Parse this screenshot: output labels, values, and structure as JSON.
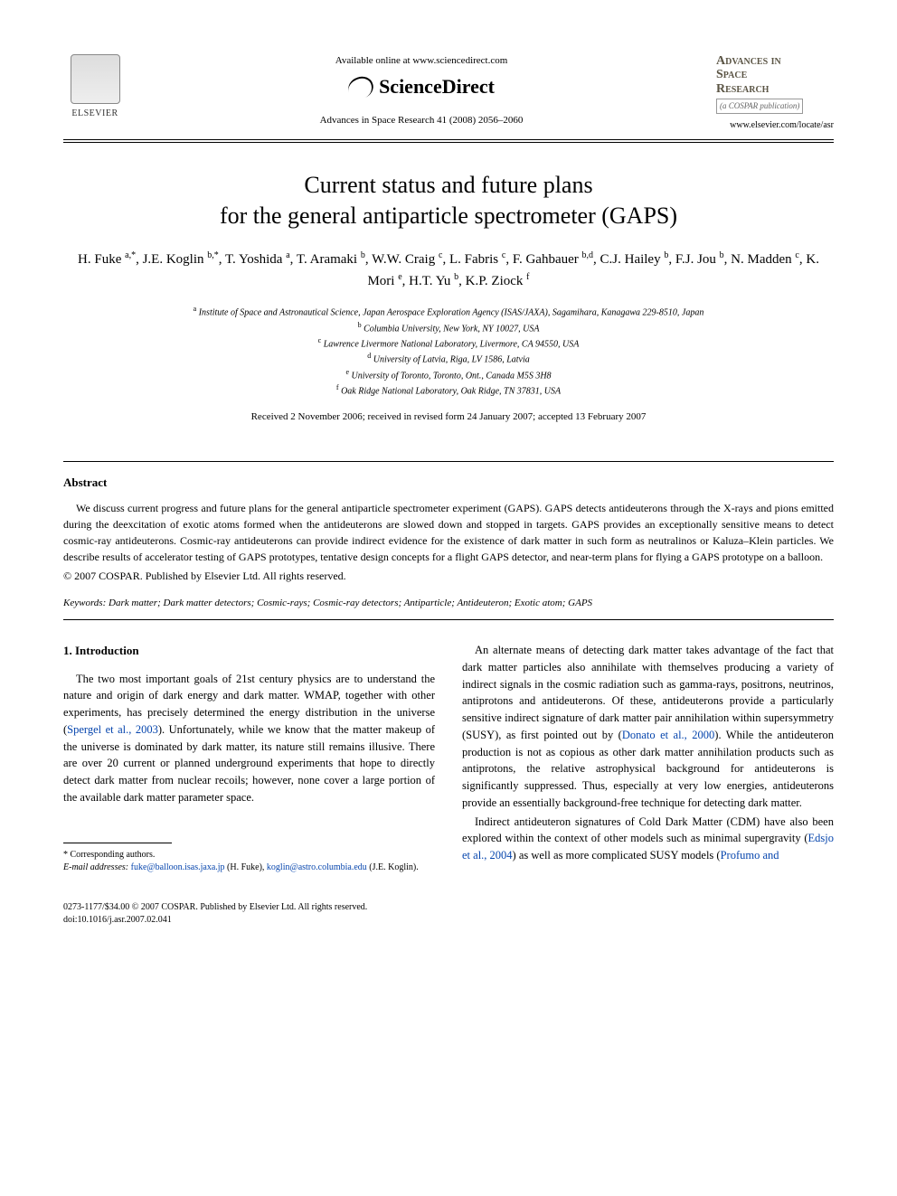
{
  "header": {
    "available_online": "Available online at www.sciencedirect.com",
    "sciencedirect": "ScienceDirect",
    "journal_ref": "Advances in Space Research 41 (2008) 2056–2060",
    "elsevier_label": "ELSEVIER",
    "journal_name_line1": "Advances in",
    "journal_name_line2": "Space",
    "journal_name_line3": "Research",
    "cospar": "(a COSPAR publication)",
    "journal_url": "www.elsevier.com/locate/asr"
  },
  "title_line1": "Current status and future plans",
  "title_line2": "for the general antiparticle spectrometer (GAPS)",
  "authors_html": "H. Fuke&nbsp;<sup>a,*</sup>, J.E. Koglin&nbsp;<sup>b,*</sup>, T. Yoshida&nbsp;<sup>a</sup>, T. Aramaki&nbsp;<sup>b</sup>, W.W. Craig&nbsp;<sup>c</sup>, L. Fabris&nbsp;<sup>c</sup>, F.&nbsp;Gahbauer&nbsp;<sup>b,d</sup>, C.J. Hailey&nbsp;<sup>b</sup>, F.J. Jou&nbsp;<sup>b</sup>, N. Madden&nbsp;<sup>c</sup>, K. Mori&nbsp;<sup>e</sup>, H.T. Yu&nbsp;<sup>b</sup>, K.P. Ziock&nbsp;<sup>f</sup>",
  "affiliations": {
    "a": "Institute of Space and Astronautical Science, Japan Aerospace Exploration Agency (ISAS/JAXA), Sagamihara, Kanagawa 229-8510, Japan",
    "b": "Columbia University, New York, NY 10027, USA",
    "c": "Lawrence Livermore National Laboratory, Livermore, CA 94550, USA",
    "d": "University of Latvia, Riga, LV 1586, Latvia",
    "e": "University of Toronto, Toronto, Ont., Canada M5S 3H8",
    "f": "Oak Ridge National Laboratory, Oak Ridge, TN 37831, USA"
  },
  "dates": "Received 2 November 2006; received in revised form 24 January 2007; accepted 13 February 2007",
  "abstract": {
    "heading": "Abstract",
    "text": "We discuss current progress and future plans for the general antiparticle spectrometer experiment (GAPS). GAPS detects antideuterons through the X-rays and pions emitted during the deexcitation of exotic atoms formed when the antideuterons are slowed down and stopped in targets. GAPS provides an exceptionally sensitive means to detect cosmic-ray antideuterons. Cosmic-ray antideuterons can provide indirect evidence for the existence of dark matter in such form as neutralinos or Kaluza–Klein particles. We describe results of accelerator testing of GAPS prototypes, tentative design concepts for a flight GAPS detector, and near-term plans for flying a GAPS prototype on a balloon.",
    "copyright": "© 2007 COSPAR. Published by Elsevier Ltd. All rights reserved."
  },
  "keywords": {
    "label": "Keywords:",
    "list": "Dark matter; Dark matter detectors; Cosmic-rays; Cosmic-ray detectors; Antiparticle; Antideuteron; Exotic atom; GAPS"
  },
  "section1": {
    "heading": "1. Introduction",
    "col_left_p1": "The two most important goals of 21st century physics are to understand the nature and origin of dark energy and dark matter. WMAP, together with other experiments, has precisely determined the energy distribution in the universe (",
    "cite1": "Spergel et al., 2003",
    "col_left_p1b": "). Unfortunately, while we know that the matter makeup of the universe is dominated by dark matter, its nature still remains illusive. There are over 20 current or planned underground experiments that hope to directly detect dark matter from nuclear recoils; however, none cover a large portion of the available dark matter parameter space.",
    "col_right_p1a": "An alternate means of detecting dark matter takes advantage of the fact that dark matter particles also annihilate with themselves producing a variety of indirect signals in the cosmic radiation such as gamma-rays, positrons, neutrinos, antiprotons and antideuterons. Of these, antideuterons provide a particularly sensitive indirect signature of dark matter pair annihilation within supersymmetry (SUSY), as first pointed out by (",
    "cite2": "Donato et al., 2000",
    "col_right_p1b": "). While the antideuteron production is not as copious as other dark matter annihilation products such as antiprotons, the relative astrophysical background for antideuterons is significantly suppressed. Thus, especially at very low energies, antideuterons provide an essentially background-free technique for detecting dark matter.",
    "col_right_p2a": "Indirect antideuteron signatures of Cold Dark Matter (CDM) have also been explored within the context of other models such as minimal supergravity (",
    "cite3": "Edsjo et al., 2004",
    "col_right_p2b": ") as well as more complicated SUSY models (",
    "cite4": "Profumo and"
  },
  "footnote": {
    "star": "* Corresponding authors.",
    "email_label": "E-mail addresses:",
    "email1": "fuke@balloon.isas.jaxa.jp",
    "email1_who": " (H. Fuke), ",
    "email2": "koglin@astro.columbia.edu",
    "email2_who": " (J.E. Koglin)."
  },
  "bottom": {
    "issn": "0273-1177/$34.00 © 2007 COSPAR. Published by Elsevier Ltd. All rights reserved.",
    "doi": "doi:10.1016/j.asr.2007.02.041"
  },
  "colors": {
    "link": "#0645ad",
    "text": "#000000",
    "journal_name": "#5b5545",
    "background": "#ffffff"
  }
}
